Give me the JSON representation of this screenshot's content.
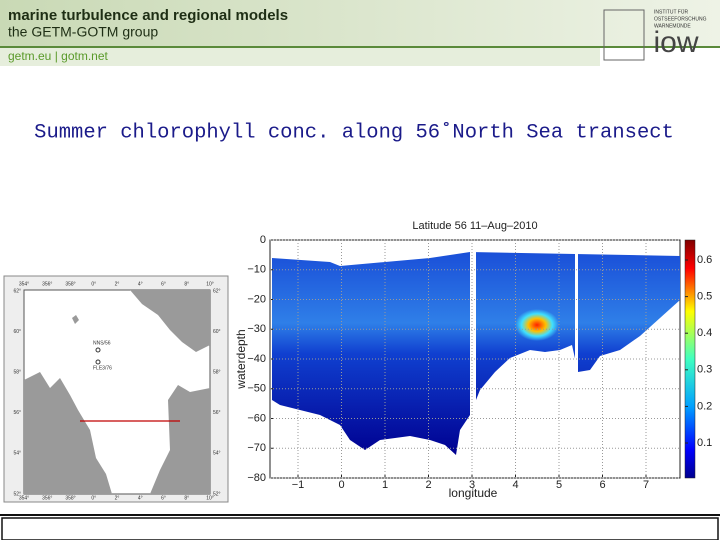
{
  "header": {
    "title": "marine turbulence and regional models",
    "subtitle": "the GETM-GOTM group",
    "links": "getm.eu  |  gotm.net",
    "logo": "iow",
    "logo_text": [
      "INSTITUT FÜR",
      "OSTSEEFORSCHUNG",
      "WARNEMÜNDE"
    ]
  },
  "slide_title": "Summer chlorophyll conc. along 56˚North Sea transect",
  "plot": {
    "title": "Latitude 56   11–Aug–2010",
    "xlabel": "longitude",
    "ylabel": "waterdepth",
    "xticks": [
      "−1",
      "0",
      "1",
      "2",
      "3",
      "4",
      "5",
      "6",
      "7"
    ],
    "yticks": [
      "0",
      "−10",
      "−20",
      "−30",
      "−40",
      "−50",
      "−60",
      "−70",
      "−80"
    ],
    "colorbar_ticks": [
      "0.6",
      "0.5",
      "0.4",
      "0.3",
      "0.2",
      "0.1"
    ]
  },
  "map": {
    "lon_labels": [
      "354°",
      "356°",
      "358°",
      "0°",
      "2°",
      "4°",
      "6°",
      "8°",
      "10°"
    ],
    "lat_labels": [
      "62°",
      "60°",
      "58°",
      "56°",
      "54°",
      "52°"
    ],
    "stations": [
      "NNS/56",
      "FLE3/76"
    ]
  }
}
